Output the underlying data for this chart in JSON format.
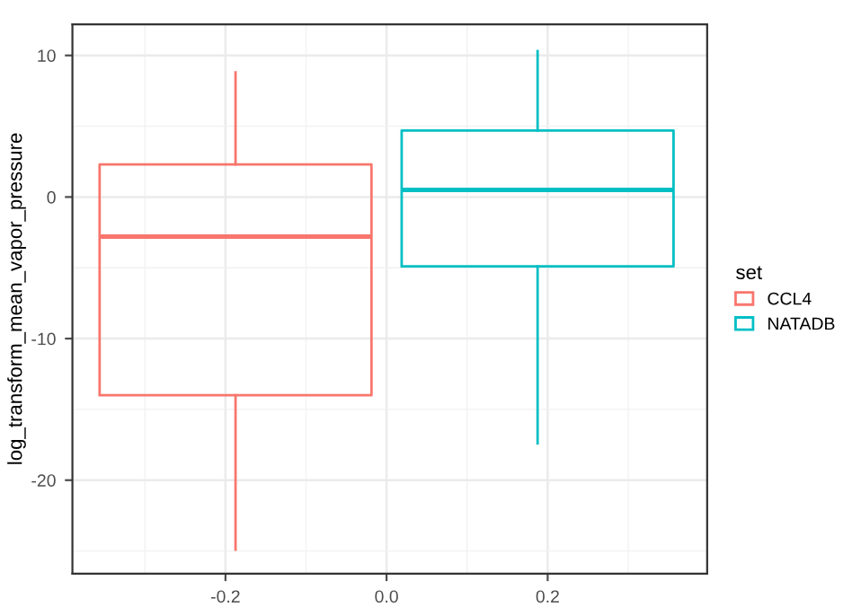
{
  "chart_data": {
    "type": "box",
    "ylabel": "log_transform_mean_vapor_pressure",
    "legend_title": "set",
    "legend": "right",
    "grid": true,
    "xlim": [
      -0.39,
      0.398
    ],
    "xticks": [
      -0.2,
      {
        "value": 0,
        "label": "0.0"
      },
      0.2
    ],
    "ylim": [
      -26.6,
      12.2
    ],
    "yticks": [
      -20,
      -10,
      0,
      10
    ],
    "series": [
      {
        "name": "CCL4",
        "color": "#f8766d",
        "x": [
          -0.1875
        ],
        "boxes": [
          {
            "low": -24.9,
            "q1": -14.0,
            "median": -2.8,
            "q3": 2.3,
            "high": 8.8
          }
        ]
      },
      {
        "name": "NATADB",
        "color": "#00bfc4",
        "x": [
          0.1875
        ],
        "boxes": [
          {
            "low": -17.4,
            "q1": -4.9,
            "median": 0.5,
            "q3": 4.7,
            "high": 10.3
          }
        ]
      }
    ]
  }
}
